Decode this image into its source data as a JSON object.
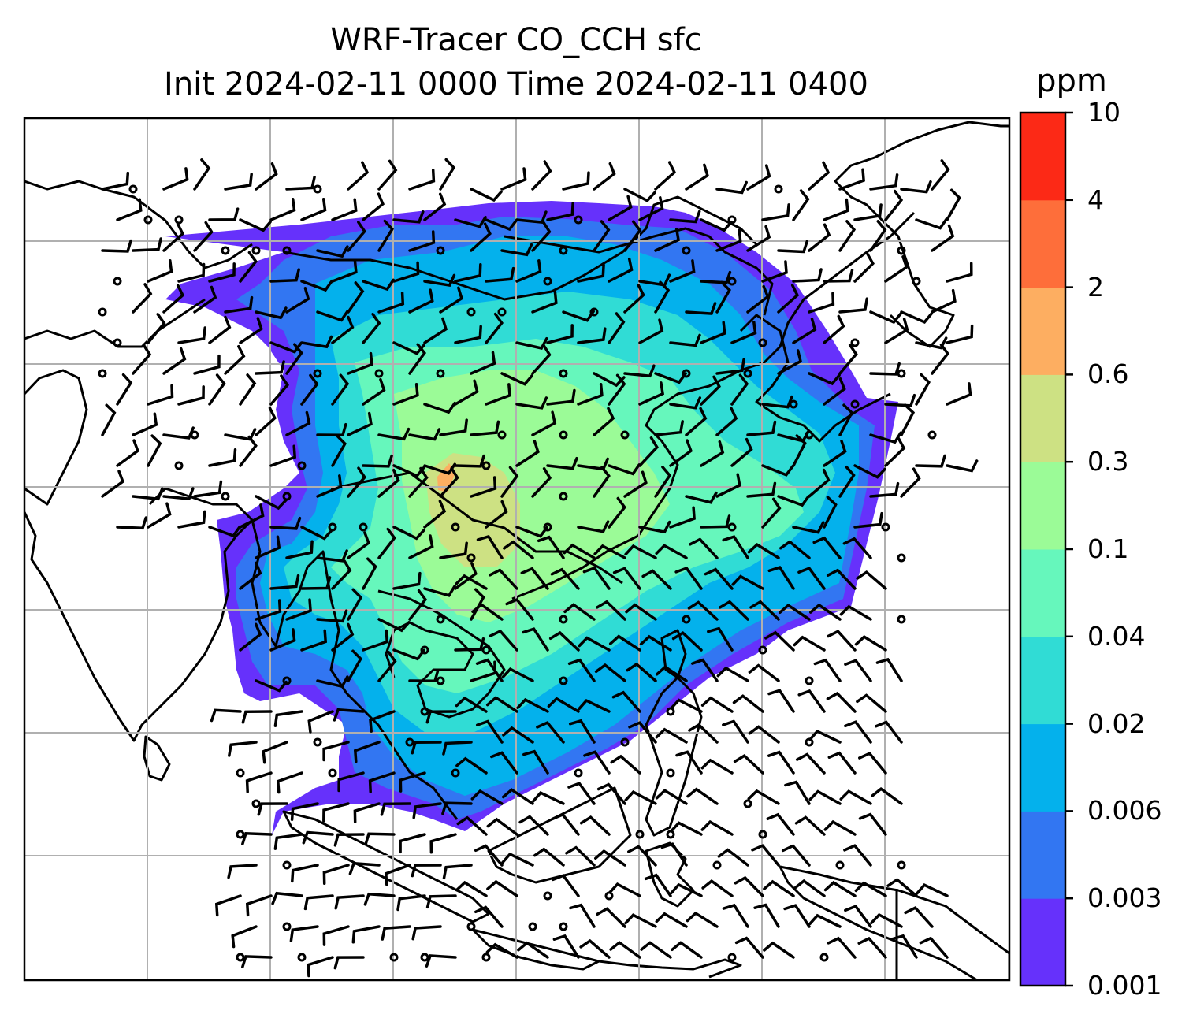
{
  "title": {
    "line1": "WRF-Tracer CO_CCH sfc",
    "line2": "Init 2024-02-11 0000 Time 2024-02-11 0400"
  },
  "colorbar": {
    "unit": "ppm",
    "levels": [
      "0.001",
      "0.003",
      "0.006",
      "0.02",
      "0.04",
      "0.1",
      "0.3",
      "0.6",
      "2",
      "4",
      "10"
    ],
    "colors": [
      "#6631fb",
      "#3276f2",
      "#04b1ec",
      "#30dcd5",
      "#66f7bc",
      "#9bfb97",
      "#cde183",
      "#fdae61",
      "#fe6e3a",
      "#fc2916"
    ]
  },
  "map": {
    "gridline_color": "#b0b0b0",
    "coastline_color": "#000000"
  }
}
